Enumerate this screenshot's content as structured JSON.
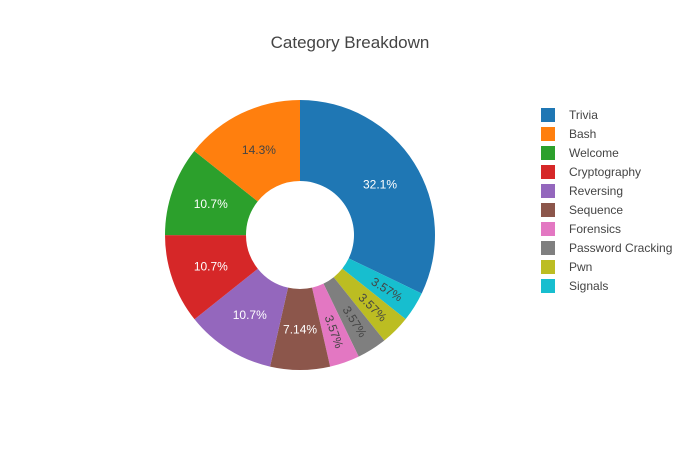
{
  "chart_data": {
    "type": "pie",
    "hole": true,
    "title": "Category Breakdown",
    "labels": [
      "Trivia",
      "Bash",
      "Welcome",
      "Cryptography",
      "Reversing",
      "Sequence",
      "Forensics",
      "Password Cracking",
      "Pwn",
      "Signals"
    ],
    "values": [
      32.1,
      14.3,
      10.7,
      10.7,
      10.7,
      7.14,
      3.57,
      3.57,
      3.57,
      3.57
    ],
    "value_labels": [
      "32.1%",
      "14.3%",
      "10.7%",
      "10.7%",
      "10.7%",
      "7.14%",
      "3.57%",
      "3.57%",
      "3.57%",
      "3.57%"
    ],
    "colors": [
      "#1f77b4",
      "#ff7f0e",
      "#2ca02c",
      "#d62728",
      "#9467bd",
      "#8c564b",
      "#e377c2",
      "#7f7f7f",
      "#bcbd22",
      "#17becf"
    ],
    "label_colors": [
      "#ffffff",
      "#444444",
      "#ffffff",
      "#ffffff",
      "#ffffff",
      "#ffffff",
      "#444444",
      "#444444",
      "#444444",
      "#444444"
    ],
    "slice_display_order": [
      "Trivia",
      "Signals",
      "Pwn",
      "Password Cracking",
      "Forensics",
      "Sequence",
      "Reversing",
      "Cryptography",
      "Welcome",
      "Bash"
    ],
    "legend_position": "right"
  }
}
